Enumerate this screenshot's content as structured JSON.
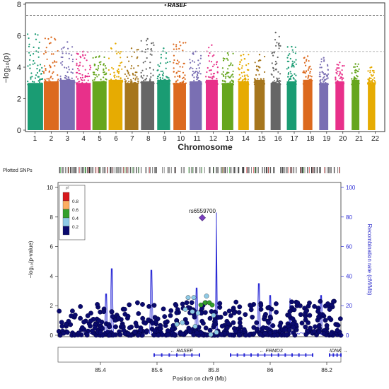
{
  "chart_data": [
    {
      "type": "scatter",
      "subtype": "manhattan",
      "xlabel": "Chromosome",
      "ylabel_html": "−log₁₀(p)",
      "ylim": [
        0,
        8
      ],
      "yticks": [
        "0",
        "2",
        "4",
        "6",
        "8"
      ],
      "categories": [
        "1",
        "2",
        "3",
        "4",
        "5",
        "6",
        "7",
        "8",
        "9",
        "10",
        "11",
        "12",
        "13",
        "14",
        "15",
        "16",
        "17",
        "18",
        "19",
        "20",
        "21",
        "22"
      ],
      "series_colors": [
        "#1a9c73",
        "#dc6a1f",
        "#7a6fb3",
        "#e8308a",
        "#66a61e",
        "#e6ab02",
        "#a6761d",
        "#666666",
        "#1a9c73",
        "#dc6a1f",
        "#7a6fb3",
        "#e8308a",
        "#66a61e",
        "#e6ab02",
        "#a6761d",
        "#666666",
        "#1a9c73",
        "#dc6a1f",
        "#7a6fb3",
        "#e8308a",
        "#66a61e",
        "#e6ab02"
      ],
      "peak_max_values": [
        6.1,
        5.9,
        5.6,
        5.0,
        4.7,
        5.5,
        5.2,
        5.8,
        5.2,
        5.6,
        5.0,
        5.4,
        4.9,
        4.8,
        4.8,
        6.2,
        5.3,
        4.7,
        4.6,
        4.3,
        4.2,
        4.0
      ],
      "significance_lines": [
        {
          "value": 7.3,
          "style": "dashed",
          "color": "#333333"
        },
        {
          "value": 5.0,
          "style": "dashed",
          "color": "#bbbbbb"
        }
      ],
      "annotations": [
        {
          "label": "RASEF",
          "chromosome": "9",
          "value": 7.95
        }
      ]
    },
    {
      "type": "scatter",
      "subtype": "regional_association",
      "title": "",
      "xlabel": "Position on chr9 (Mb)",
      "ylabel_html": "−log₁₀(p-value)",
      "y2label": "Recombination rate (cM/Mb)",
      "xlim": [
        85.25,
        86.25
      ],
      "ylim": [
        0,
        10
      ],
      "y2lim": [
        0,
        100
      ],
      "xticks": [
        "85.4",
        "85.6",
        "85.8",
        "86",
        "86.2"
      ],
      "yticks": [
        "0",
        "2",
        "4",
        "6",
        "8",
        "10"
      ],
      "y2ticks": [
        "0",
        "20",
        "40",
        "60",
        "80",
        "100"
      ],
      "legend": {
        "title": "r²",
        "placement": "top-left",
        "entries": [
          {
            "label": "0.8",
            "color": "#d7191c"
          },
          {
            "label": "0.6",
            "color": "#fdae61"
          },
          {
            "label": "0.4",
            "color": "#33a02c"
          },
          {
            "label": "0.2",
            "color": "#8ecae6"
          },
          {
            "label": "",
            "color": "#0a0a6e"
          }
        ]
      },
      "lead_snp": {
        "label": "rs6559700",
        "x": 85.76,
        "y": 7.95,
        "color": "#7b3fbf"
      },
      "ld_points": [
        {
          "x": 85.71,
          "y": 2.55,
          "r2": 0.4
        },
        {
          "x": 85.73,
          "y": 2.55,
          "r2": 0.4
        },
        {
          "x": 85.755,
          "y": 2.05,
          "r2": 0.6
        },
        {
          "x": 85.77,
          "y": 2.2,
          "r2": 0.6
        },
        {
          "x": 85.785,
          "y": 2.2,
          "r2": 0.6
        },
        {
          "x": 85.775,
          "y": 2.65,
          "r2": 0.4
        },
        {
          "x": 85.795,
          "y": 2.05,
          "r2": 0.6
        },
        {
          "x": 85.7,
          "y": 1.75,
          "r2": 0.4
        },
        {
          "x": 85.725,
          "y": 1.6,
          "r2": 0.4
        },
        {
          "x": 85.745,
          "y": 1.5,
          "r2": 0.4
        },
        {
          "x": 85.8,
          "y": 1.35,
          "r2": 0.4
        },
        {
          "x": 85.69,
          "y": 0.85,
          "r2": 0.4
        },
        {
          "x": 85.735,
          "y": 0.6,
          "r2": 0.4
        },
        {
          "x": 85.79,
          "y": 0.05,
          "r2": 0.4
        },
        {
          "x": 85.67,
          "y": 0.75,
          "r2": 0.4
        },
        {
          "x": 85.81,
          "y": 0.2,
          "r2": 0.4
        }
      ],
      "recombination_peaks": [
        {
          "x": 85.42,
          "rate": 28
        },
        {
          "x": 85.44,
          "rate": 45
        },
        {
          "x": 85.58,
          "rate": 44
        },
        {
          "x": 85.74,
          "rate": 32
        },
        {
          "x": 85.81,
          "rate": 83
        },
        {
          "x": 85.96,
          "rate": 35
        },
        {
          "x": 86.0,
          "rate": 27
        },
        {
          "x": 86.07,
          "rate": 25
        },
        {
          "x": 86.18,
          "rate": 27
        }
      ],
      "genes": [
        {
          "name": "RASEF",
          "start": 85.59,
          "end": 85.75,
          "strand": "-"
        },
        {
          "name": "FRMD3",
          "start": 85.86,
          "end": 86.15,
          "strand": "-"
        },
        {
          "name": "IDNK",
          "start": 86.21,
          "end": 86.25,
          "strand": "+"
        }
      ],
      "track_label": "Plotted SNPs"
    }
  ]
}
